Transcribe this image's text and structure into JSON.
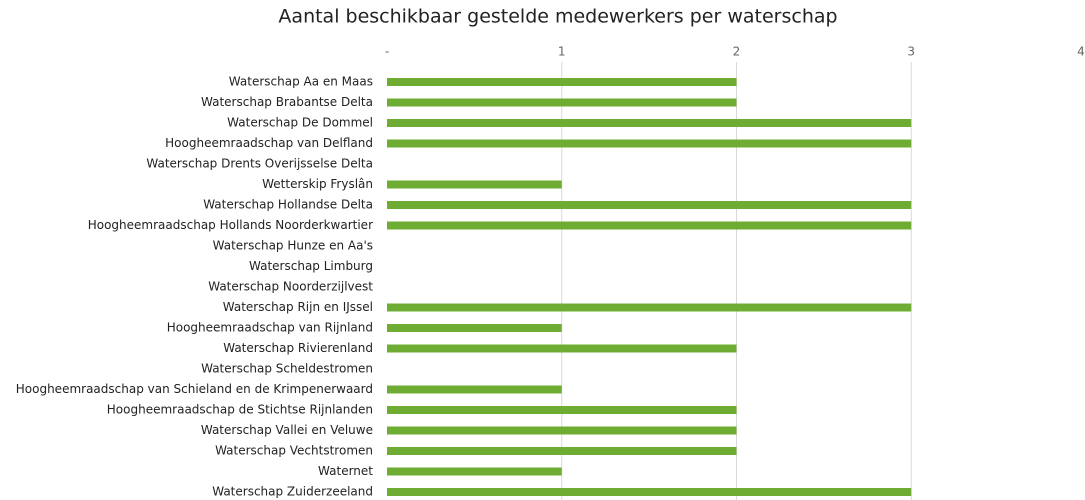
{
  "chart_data": {
    "type": "bar",
    "orientation": "horizontal",
    "title": "Aantal beschikbaar gestelde medewerkers per waterschap",
    "categories": [
      "Waterschap Aa en Maas",
      "Waterschap Brabantse Delta",
      "Waterschap De Dommel",
      "Hoogheemraadschap van Delfland",
      "Waterschap Drents Overijsselse Delta",
      "Wetterskip Fryslân",
      "Waterschap Hollandse Delta",
      "Hoogheemraadschap Hollands Noorderkwartier",
      "Waterschap Hunze en Aa's",
      "Waterschap Limburg",
      "Waterschap Noorderzijlvest",
      "Waterschap Rijn en IJssel",
      "Hoogheemraadschap van Rijnland",
      "Waterschap Rivierenland",
      "Waterschap Scheldestromen",
      "Hoogheemraadschap van Schieland en de Krimpenerwaard",
      "Hoogheemraadschap de Stichtse Rijnlanden",
      "Waterschap Vallei en Veluwe",
      "Waterschap Vechtstromen",
      "Waternet",
      "Waterschap Zuiderzeeland"
    ],
    "values": [
      2,
      2,
      3,
      3,
      0,
      1,
      3,
      3,
      0,
      0,
      0,
      3,
      1,
      2,
      0,
      1,
      2,
      2,
      2,
      1,
      3
    ],
    "color": "#6fac34",
    "xlim": [
      0,
      4
    ],
    "xticks": [
      {
        "value": 0,
        "label": "-"
      },
      1,
      2,
      3,
      4
    ],
    "grid": true
  }
}
